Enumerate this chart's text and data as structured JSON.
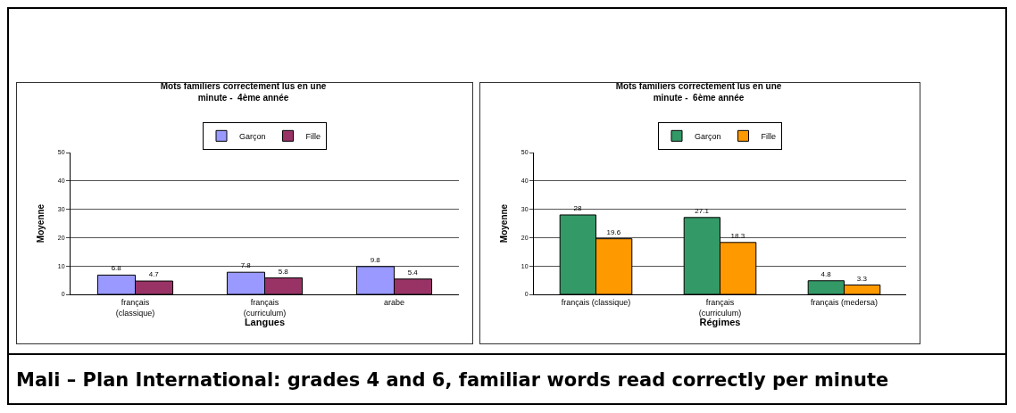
{
  "chart_data": [
    {
      "type": "bar",
      "title": "Mots familiers correctement lus en une\nminute -  4ème année",
      "xlabel": "Langues",
      "ylabel": "Moyenne",
      "categories": [
        "français\n(classique)",
        "français\n(curriculum)",
        "arabe"
      ],
      "series": [
        {
          "name": "Garçon",
          "color": "#9999ff",
          "values": [
            6.8,
            7.8,
            9.8
          ]
        },
        {
          "name": "Fille",
          "color": "#993366",
          "values": [
            4.7,
            5.8,
            5.4
          ]
        }
      ],
      "ylim": [
        0,
        50
      ],
      "yticks": [
        0,
        10,
        20,
        30,
        40,
        50
      ],
      "grid": "y",
      "legend": "top",
      "data_labels": true
    },
    {
      "type": "bar",
      "title": "Mots familiers correctement lus en une\nminute -  6ème année",
      "xlabel": "Régimes",
      "ylabel": "Moyenne",
      "categories": [
        "français (classique)",
        "français\n(curriculum)",
        "français (medersa)"
      ],
      "series": [
        {
          "name": "Garçon",
          "color": "#339966",
          "values": [
            28,
            27.1,
            4.8
          ]
        },
        {
          "name": "Fille",
          "color": "#ff9900",
          "values": [
            19.6,
            18.3,
            3.3
          ]
        }
      ],
      "ylim": [
        0,
        50
      ],
      "yticks": [
        0,
        10,
        20,
        30,
        40,
        50
      ],
      "grid": "y",
      "legend": "top",
      "data_labels": true
    },
    {
      "type": "other",
      "title": "Mali – Plan International: grades 4 and 6, familiar words read correctly per minute"
    }
  ]
}
